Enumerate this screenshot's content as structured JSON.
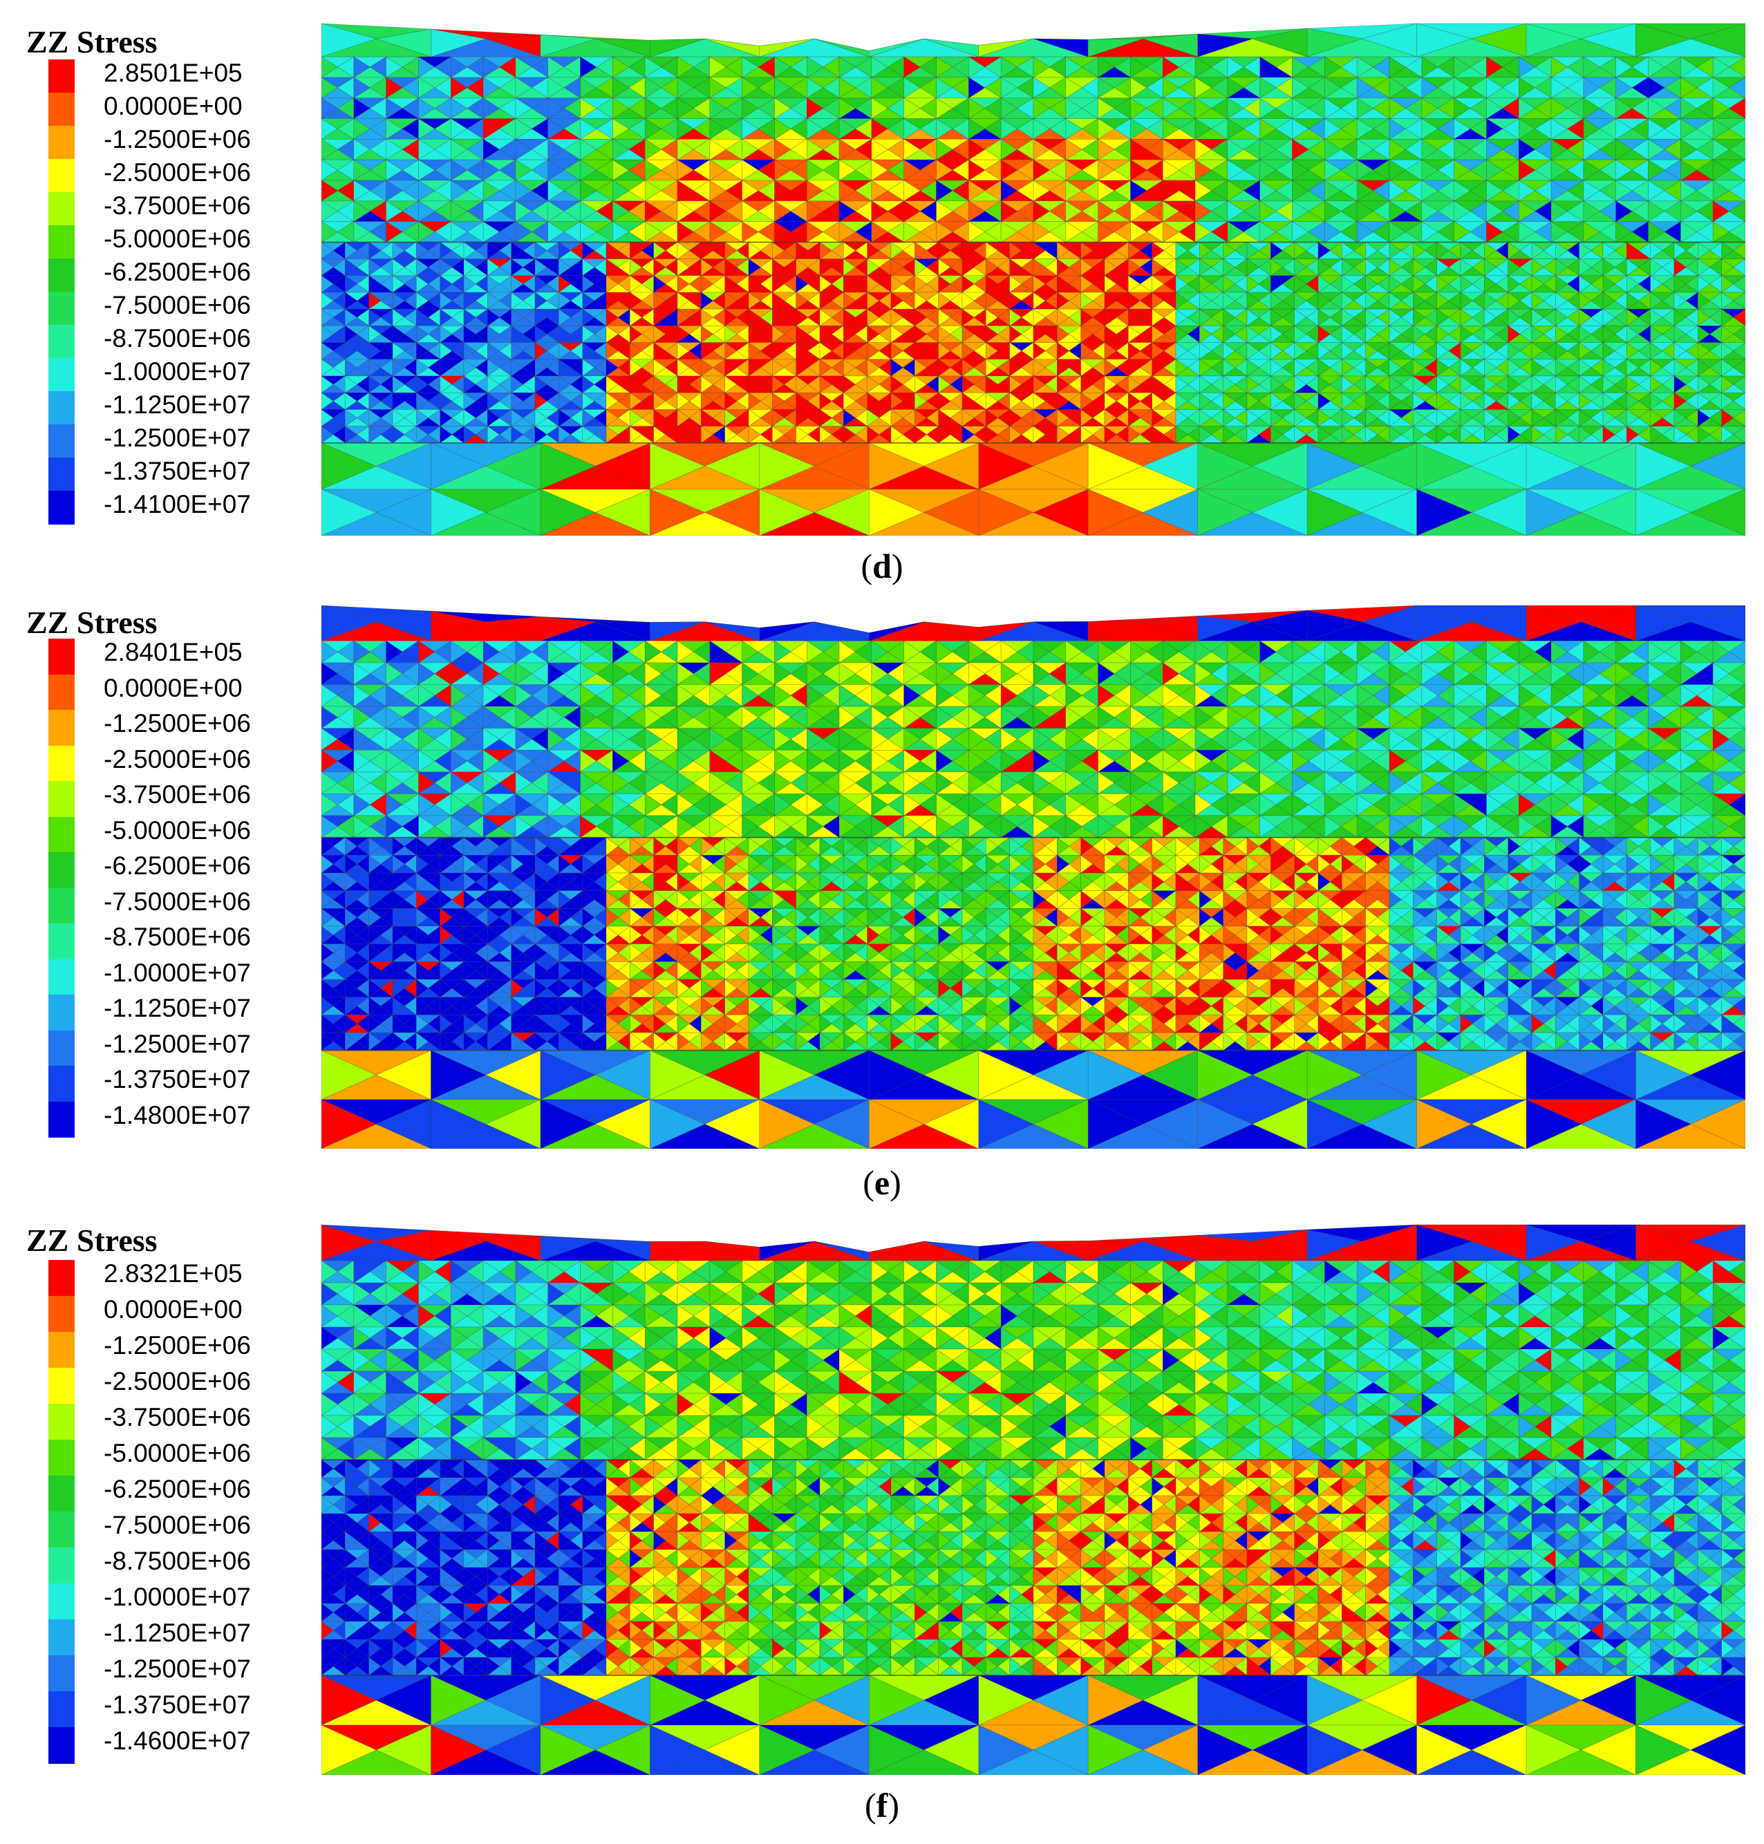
{
  "panels": [
    {
      "legend_title": "ZZ Stress",
      "labels": [
        "2.8501E+05",
        "0.0000E+00",
        "-1.2500E+06",
        "-2.5000E+06",
        "-3.7500E+06",
        "-5.0000E+06",
        "-6.2500E+06",
        "-7.5000E+06",
        "-8.7500E+06",
        "-1.0000E+07",
        "-1.1250E+07",
        "-1.2500E+07",
        "-1.3750E+07",
        "-1.4100E+07"
      ],
      "caption_letter": "d"
    },
    {
      "legend_title": "ZZ Stress",
      "labels": [
        "2.8401E+05",
        "0.0000E+00",
        "-1.2500E+06",
        "-2.5000E+06",
        "-3.7500E+06",
        "-5.0000E+06",
        "-6.2500E+06",
        "-7.5000E+06",
        "-8.7500E+06",
        "-1.0000E+07",
        "-1.1250E+07",
        "-1.2500E+07",
        "-1.3750E+07",
        "-1.4800E+07"
      ],
      "caption_letter": "e"
    },
    {
      "legend_title": "ZZ Stress",
      "labels": [
        "2.8321E+05",
        "0.0000E+00",
        "-1.2500E+06",
        "-2.5000E+06",
        "-3.7500E+06",
        "-5.0000E+06",
        "-6.2500E+06",
        "-7.5000E+06",
        "-8.7500E+06",
        "-1.0000E+07",
        "-1.1250E+07",
        "-1.2500E+07",
        "-1.3750E+07",
        "-1.4600E+07"
      ],
      "caption_letter": "f"
    }
  ],
  "colors": {
    "scale": [
      "#ff0000",
      "#ff5a00",
      "#ffa500",
      "#ffff00",
      "#aaff00",
      "#55e000",
      "#22cc22",
      "#22dd55",
      "#22ee99",
      "#22eedd",
      "#22aaee",
      "#2277ee",
      "#1144ee",
      "#0000dd"
    ]
  }
}
